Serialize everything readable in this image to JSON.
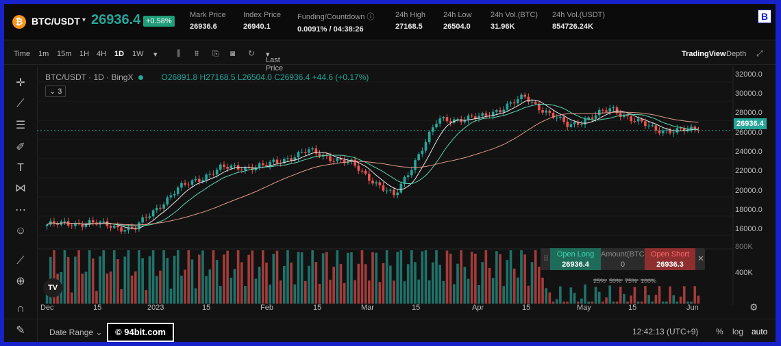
{
  "header": {
    "coin_symbol": "₿",
    "pair": "BTC/USDT",
    "last_price": "26936.4",
    "change_pct": "+0.58%",
    "brand_letter": "B",
    "stats": [
      {
        "label": "Mark Price",
        "value": "26936.6"
      },
      {
        "label": "Index Price",
        "value": "26940.1"
      },
      {
        "label": "Funding/Countdown",
        "value": "0.0091% / 04:38:26"
      },
      {
        "label": "24h High",
        "value": "27168.5"
      },
      {
        "label": "24h Low",
        "value": "26504.0"
      },
      {
        "label": "24h Vol.(BTC)",
        "value": "31.96K"
      },
      {
        "label": "24h Vol.(USDT)",
        "value": "854726.24K"
      }
    ]
  },
  "toolbar": {
    "time_label": "Time",
    "intervals": [
      "1m",
      "15m",
      "1H",
      "4H",
      "1D",
      "1W"
    ],
    "active_interval": "1D",
    "price_type": "Last Price",
    "view_tabs": [
      "TradingView",
      "Depth"
    ],
    "active_view": "TradingView"
  },
  "chart": {
    "symbol_line": "BTC/USDT · 1D · BingX",
    "ohlc_line": "O26891.8 H27168.5 L26504.0 C26936.4 +44.6 (+0.17%)",
    "indicator_count": "3",
    "last_price_tag": "26936.4",
    "price_ticks": [
      "32000.0",
      "30000.0",
      "28000.0",
      "26000.0",
      "24000.0",
      "22000.0",
      "20000.0",
      "18000.0",
      "16000.0"
    ],
    "volume_ticks": [
      "800K",
      "400K"
    ],
    "date_ticks": [
      "Dec",
      "15",
      "2023",
      "15",
      "Feb",
      "15",
      "Mar",
      "15",
      "Apr",
      "15",
      "May",
      "15",
      "Jun"
    ],
    "tv_logo": "TV",
    "colors": {
      "up": "#26a69a",
      "down": "#ef5350",
      "ma_fast": "#e6e6e6",
      "ma_mid": "#5fd3b3",
      "ma_slow": "#e09a8a"
    }
  },
  "chart_data": {
    "type": "candlestick",
    "interval": "1D",
    "x_range": [
      "Dec",
      "Jun"
    ],
    "price_range": [
      15000,
      33000
    ],
    "volume_range": [
      0,
      800000
    ],
    "last_price": 26936.4,
    "keypoints": [
      {
        "date": "Dec",
        "close": 17100
      },
      {
        "date": "Dec 15",
        "close": 17300
      },
      {
        "date": "2023",
        "close": 16600
      },
      {
        "date": "Jan 15",
        "close": 20800
      },
      {
        "date": "Jan 25",
        "close": 23000
      },
      {
        "date": "Feb",
        "close": 23200
      },
      {
        "date": "Feb 15",
        "close": 24800
      },
      {
        "date": "Mar",
        "close": 23500
      },
      {
        "date": "Mar 10",
        "close": 20000
      },
      {
        "date": "Mar 20",
        "close": 28000
      },
      {
        "date": "Apr",
        "close": 28300
      },
      {
        "date": "Apr 15",
        "close": 30400
      },
      {
        "date": "Apr 25",
        "close": 27400
      },
      {
        "date": "May",
        "close": 29200
      },
      {
        "date": "May 15",
        "close": 27000
      },
      {
        "date": "Jun",
        "close": 26936.4
      }
    ]
  },
  "order_panel": {
    "long_label": "Open Long",
    "long_price": "26936.4",
    "amount_label": "Amount(BTC)",
    "amount_value": "0",
    "short_label": "Open Short",
    "short_price": "26936.3",
    "percents": [
      "25%",
      "50%",
      "75%",
      "100%"
    ]
  },
  "footer": {
    "date_range_label": "Date Range",
    "watermark": "© 94bit.com",
    "time": "12:42:13 (UTC+9)",
    "scale_options": [
      "%",
      "log",
      "auto"
    ]
  }
}
